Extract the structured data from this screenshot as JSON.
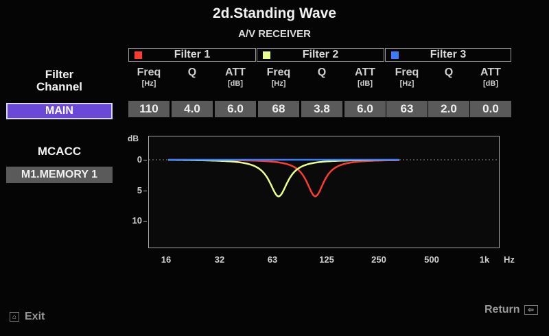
{
  "header": {
    "title": "2d.Standing Wave",
    "subtitle": "A/V RECEIVER"
  },
  "filters": [
    {
      "label": "Filter 1",
      "color": "#ff3b2f"
    },
    {
      "label": "Filter 2",
      "color": "#e9ff8c"
    },
    {
      "label": "Filter 3",
      "color": "#3b7bff"
    }
  ],
  "columns": [
    {
      "main": "Freq",
      "unit": "[Hz]"
    },
    {
      "main": "Q",
      "unit": ""
    },
    {
      "main": "ATT",
      "unit": "[dB]"
    },
    {
      "main": "Freq",
      "unit": "[Hz]"
    },
    {
      "main": "Q",
      "unit": ""
    },
    {
      "main": "ATT",
      "unit": "[dB]"
    },
    {
      "main": "Freq",
      "unit": "[Hz]"
    },
    {
      "main": "Q",
      "unit": ""
    },
    {
      "main": "ATT",
      "unit": "[dB]"
    }
  ],
  "values": [
    "110",
    "4.0",
    "6.0",
    "68",
    "3.8",
    "6.0",
    "63",
    "2.0",
    "0.0"
  ],
  "sidebar": {
    "filter_channel_label_line1": "Filter",
    "filter_channel_label_line2": "Channel",
    "channel_value": "MAIN",
    "mcacc_label": "MCACC",
    "memory_value": "M1.MEMORY 1"
  },
  "chart_data": {
    "type": "line",
    "ylabel": "dB",
    "yticks": [
      "0",
      "5",
      "10"
    ],
    "ylim": [
      0,
      14.5
    ],
    "y_inverted": true,
    "x_scale": "log",
    "xticks": [
      "16",
      "32",
      "63",
      "125",
      "250",
      "500",
      "1k"
    ],
    "x_unit": "Hz",
    "xlim": [
      16,
      1000
    ],
    "reference_line": {
      "y": 0,
      "style": "dotted"
    },
    "series": [
      {
        "name": "Filter 1",
        "color": "#ff3b2f",
        "center_hz": 110,
        "q": 4.0,
        "att_db": 6.0
      },
      {
        "name": "Filter 2",
        "color": "#e9ff8c",
        "center_hz": 68,
        "q": 3.8,
        "att_db": 6.0
      },
      {
        "name": "Filter 3",
        "color": "#3b7bff",
        "center_hz": 63,
        "q": 2.0,
        "att_db": 0.0
      }
    ]
  },
  "footer": {
    "exit_label": "Exit",
    "return_label": "Return"
  }
}
